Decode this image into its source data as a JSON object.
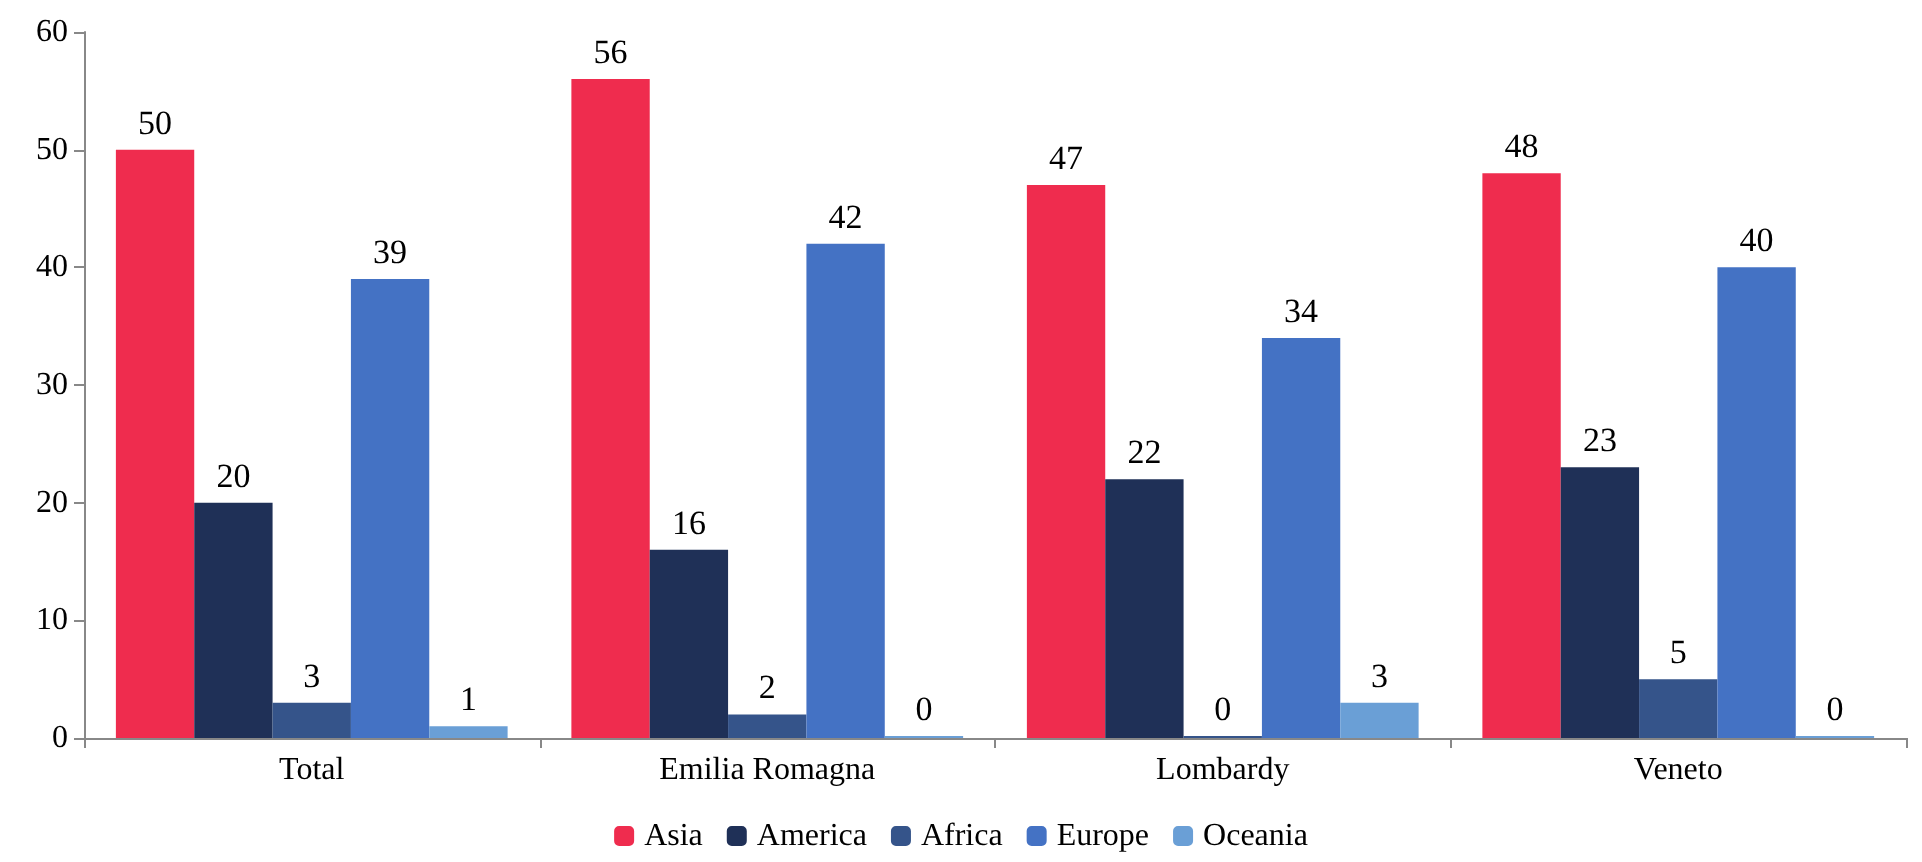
{
  "chart_data": {
    "type": "bar",
    "categories": [
      "Total",
      "Emilia Romagna",
      "Lombardy",
      "Veneto"
    ],
    "series": [
      {
        "name": "Asia",
        "color": "#ef2c4e",
        "values": [
          50,
          56,
          47,
          48
        ]
      },
      {
        "name": "America",
        "color": "#1f3057",
        "values": [
          20,
          16,
          22,
          23
        ]
      },
      {
        "name": "Africa",
        "color": "#35548a",
        "values": [
          3,
          2,
          0,
          5
        ]
      },
      {
        "name": "Europe",
        "color": "#4472c4",
        "values": [
          39,
          42,
          34,
          40
        ]
      },
      {
        "name": "Oceania",
        "color": "#6a9fd6",
        "values": [
          1,
          0,
          3,
          0
        ]
      }
    ],
    "ylim": [
      0,
      60
    ],
    "yticks": [
      0,
      10,
      20,
      30,
      40,
      50,
      60
    ],
    "data_labels": true,
    "grid": false,
    "legend": "bottom"
  }
}
